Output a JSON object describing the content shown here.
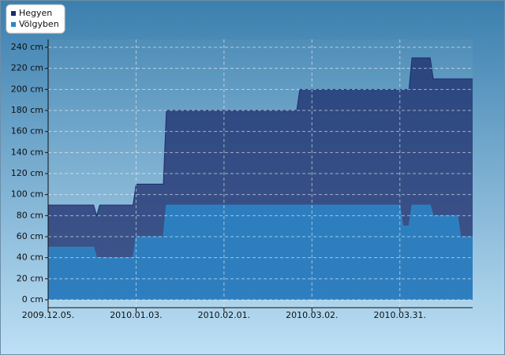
{
  "chart_data": {
    "type": "area",
    "x": [
      "2009.12.05.",
      "2009.12.20.",
      "2009.12.21.",
      "2009.12.22.",
      "2010.01.02.",
      "2010.01.03.",
      "2010.01.12.",
      "2010.01.13.",
      "2010.02.25.",
      "2010.02.26.",
      "2010.03.31.",
      "2010.04.01.",
      "2010.04.03.",
      "2010.04.04.",
      "2010.04.10.",
      "2010.04.11.",
      "2010.04.19.",
      "2010.04.20.",
      "2010.04.24."
    ],
    "series": [
      {
        "name": "Hegyen",
        "color": "#1c2c6b",
        "values": [
          90,
          90,
          80,
          90,
          90,
          110,
          110,
          180,
          180,
          200,
          200,
          200,
          200,
          230,
          230,
          210,
          210,
          210,
          210
        ]
      },
      {
        "name": "Völgyben",
        "color": "#2b86c8",
        "values": [
          50,
          50,
          40,
          40,
          40,
          60,
          60,
          90,
          90,
          90,
          90,
          70,
          70,
          90,
          90,
          80,
          80,
          60,
          60
        ]
      }
    ],
    "xlim": [
      "2009.12.05.",
      "2010.04.24."
    ],
    "xticks": [
      "2009.12.05.",
      "2010.01.03.",
      "2010.02.01.",
      "2010.03.02.",
      "2010.03.31."
    ],
    "ylim": [
      -7.5,
      247.5
    ],
    "yticks": [
      {
        "value": 0,
        "label": "0 cm"
      },
      {
        "value": 20,
        "label": "20 cm"
      },
      {
        "value": 40,
        "label": "40 cm"
      },
      {
        "value": 60,
        "label": "60 cm"
      },
      {
        "value": 80,
        "label": "80 cm"
      },
      {
        "value": 100,
        "label": "100 cm"
      },
      {
        "value": 120,
        "label": "120 cm"
      },
      {
        "value": 140,
        "label": "140 cm"
      },
      {
        "value": 160,
        "label": "160 cm"
      },
      {
        "value": 180,
        "label": "180 cm"
      },
      {
        "value": 200,
        "label": "200 cm"
      },
      {
        "value": 220,
        "label": "220 cm"
      },
      {
        "value": 240,
        "label": "240 cm"
      }
    ],
    "grid": true,
    "legend": "top-left"
  }
}
